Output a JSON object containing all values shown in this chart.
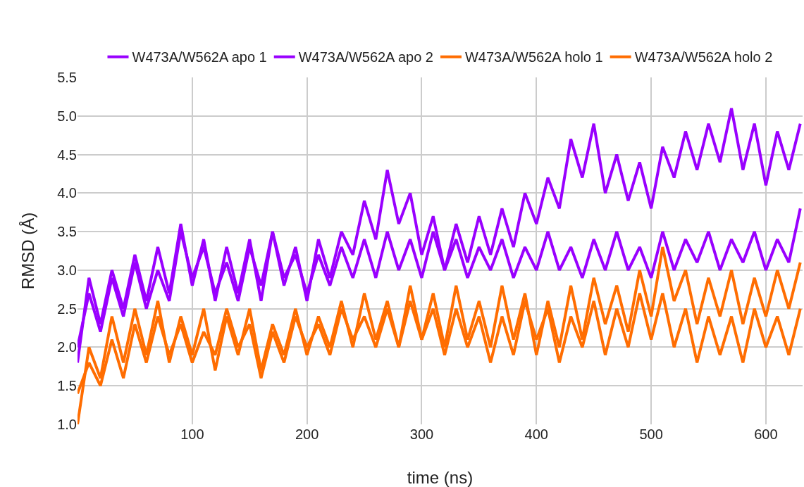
{
  "chart_data": {
    "type": "line",
    "xlabel": "time (ns)",
    "ylabel": "RMSD (Å)",
    "legend": "top",
    "grid": true,
    "marker": "none",
    "line_style": "solid",
    "xlim": [
      0,
      632
    ],
    "xticks": [
      100,
      200,
      300,
      400,
      500,
      600
    ],
    "ylim": [
      1.0,
      5.5
    ],
    "yticks": [
      {
        "value": 1.0,
        "label": "1.0"
      },
      {
        "value": 1.5,
        "label": "1.5"
      },
      {
        "value": 2.0,
        "label": "2.0"
      },
      {
        "value": 2.5,
        "label": "2.5"
      },
      {
        "value": 3.0,
        "label": "3.0"
      },
      {
        "value": 3.5,
        "label": "3.5"
      },
      {
        "value": 4.0,
        "label": "4.0"
      },
      {
        "value": 4.5,
        "label": "4.5"
      },
      {
        "value": 5.0,
        "label": "5.0"
      },
      {
        "value": 5.5,
        "label": "5.5"
      }
    ],
    "x": [
      0,
      10,
      20,
      30,
      40,
      50,
      60,
      70,
      80,
      90,
      100,
      110,
      120,
      130,
      140,
      150,
      160,
      170,
      180,
      190,
      200,
      210,
      220,
      230,
      240,
      250,
      260,
      270,
      280,
      290,
      300,
      310,
      320,
      330,
      340,
      350,
      360,
      370,
      380,
      390,
      400,
      410,
      420,
      430,
      440,
      450,
      460,
      470,
      480,
      490,
      500,
      510,
      520,
      530,
      540,
      550,
      560,
      570,
      580,
      590,
      600,
      610,
      620,
      630
    ],
    "series": [
      {
        "name": "W473A/W562A apo 1",
        "color": "#9900ff",
        "values": [
          1.8,
          2.9,
          2.3,
          3.0,
          2.5,
          3.2,
          2.6,
          3.3,
          2.7,
          3.6,
          2.8,
          3.4,
          2.6,
          3.3,
          2.7,
          3.4,
          2.6,
          3.5,
          2.8,
          3.3,
          2.6,
          3.4,
          2.9,
          3.5,
          3.2,
          3.9,
          3.4,
          4.3,
          3.6,
          4.0,
          3.2,
          3.7,
          3.0,
          3.6,
          3.1,
          3.7,
          3.2,
          3.8,
          3.3,
          4.0,
          3.6,
          4.2,
          3.8,
          4.7,
          4.2,
          4.9,
          4.0,
          4.5,
          3.9,
          4.4,
          3.8,
          4.6,
          4.2,
          4.8,
          4.3,
          4.9,
          4.4,
          5.1,
          4.3,
          4.9,
          4.1,
          4.8,
          4.3,
          4.9
        ]
      },
      {
        "name": "W473A/W562A apo 2",
        "color": "#9900ff",
        "values": [
          2.0,
          2.7,
          2.2,
          2.9,
          2.4,
          3.1,
          2.5,
          3.0,
          2.6,
          3.5,
          2.9,
          3.3,
          2.7,
          3.1,
          2.6,
          3.3,
          2.8,
          3.5,
          2.9,
          3.2,
          2.7,
          3.2,
          2.8,
          3.3,
          2.9,
          3.4,
          2.9,
          3.5,
          3.0,
          3.4,
          2.9,
          3.5,
          3.0,
          3.4,
          2.9,
          3.3,
          3.0,
          3.4,
          2.9,
          3.3,
          3.0,
          3.5,
          3.0,
          3.3,
          2.9,
          3.4,
          3.0,
          3.5,
          3.0,
          3.3,
          2.9,
          3.5,
          3.0,
          3.4,
          3.1,
          3.5,
          3.0,
          3.4,
          3.1,
          3.5,
          3.0,
          3.4,
          3.1,
          3.8
        ]
      },
      {
        "name": "W473A/W562A holo 1",
        "color": "#ff6d01",
        "values": [
          1.0,
          2.0,
          1.6,
          2.4,
          1.8,
          2.5,
          1.9,
          2.6,
          1.8,
          2.4,
          1.9,
          2.5,
          1.7,
          2.4,
          1.9,
          2.5,
          1.7,
          2.3,
          1.9,
          2.5,
          1.9,
          2.4,
          2.0,
          2.6,
          2.0,
          2.7,
          2.1,
          2.6,
          2.0,
          2.8,
          2.1,
          2.7,
          2.0,
          2.8,
          2.1,
          2.6,
          2.0,
          2.8,
          2.1,
          2.7,
          1.9,
          2.6,
          2.0,
          2.8,
          2.1,
          2.9,
          2.3,
          2.8,
          2.2,
          3.0,
          2.4,
          3.3,
          2.6,
          3.0,
          2.3,
          2.9,
          2.4,
          3.0,
          2.3,
          2.9,
          2.4,
          3.0,
          2.5,
          3.1
        ]
      },
      {
        "name": "W473A/W562A holo 2",
        "color": "#ff6d01",
        "values": [
          1.4,
          1.8,
          1.5,
          2.1,
          1.6,
          2.3,
          1.8,
          2.4,
          1.9,
          2.3,
          1.8,
          2.2,
          1.9,
          2.5,
          2.0,
          2.3,
          1.6,
          2.2,
          1.8,
          2.4,
          2.0,
          2.3,
          1.9,
          2.5,
          2.1,
          2.4,
          2.0,
          2.5,
          2.0,
          2.6,
          2.1,
          2.5,
          1.9,
          2.5,
          2.0,
          2.4,
          1.8,
          2.4,
          1.9,
          2.6,
          2.1,
          2.5,
          1.8,
          2.4,
          2.0,
          2.6,
          1.9,
          2.5,
          2.0,
          2.7,
          2.1,
          2.7,
          2.0,
          2.5,
          1.8,
          2.4,
          1.9,
          2.4,
          1.8,
          2.5,
          2.0,
          2.4,
          1.9,
          2.5
        ]
      }
    ]
  }
}
